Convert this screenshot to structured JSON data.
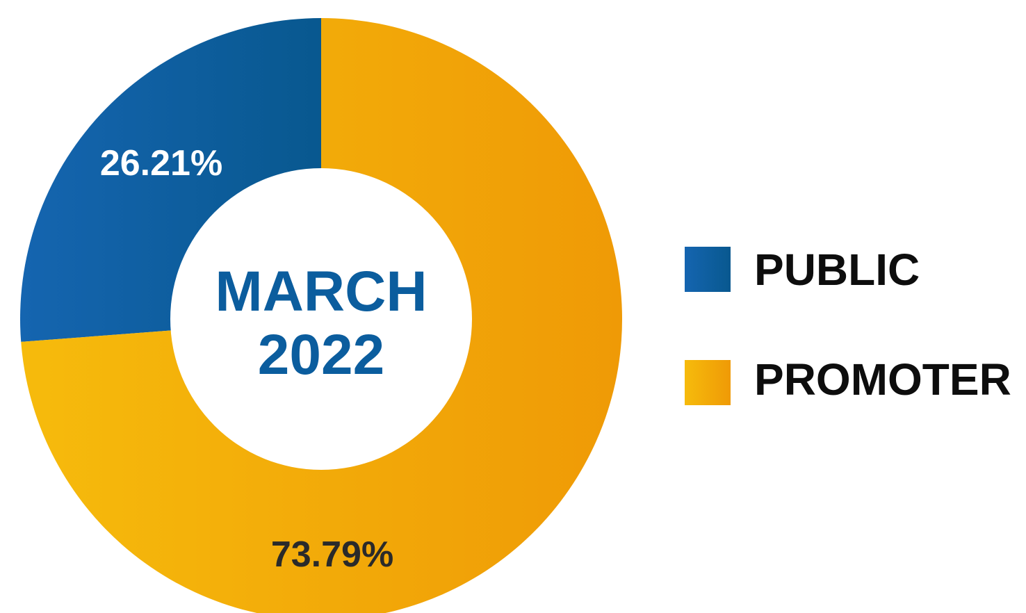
{
  "chart_data": {
    "type": "pie",
    "donut": true,
    "center_label": {
      "line1": "MARCH",
      "line2": "2022",
      "color": "#0b5d9e"
    },
    "slices": [
      {
        "name": "PUBLIC",
        "value": 26.21,
        "label": "26.21%",
        "color_start": "#1565b0",
        "color_end": "#08588f",
        "label_color": "#ffffff"
      },
      {
        "name": "PROMOTER",
        "value": 73.79,
        "label": "73.79%",
        "color_start": "#f6bb0c",
        "color_end": "#ef9a06",
        "label_color": "#2a2a2a"
      }
    ],
    "start_angle_deg": 270,
    "direction": "counterclockwise",
    "legend": {
      "placement": "right",
      "items": [
        "PUBLIC",
        "PROMOTER"
      ]
    }
  }
}
